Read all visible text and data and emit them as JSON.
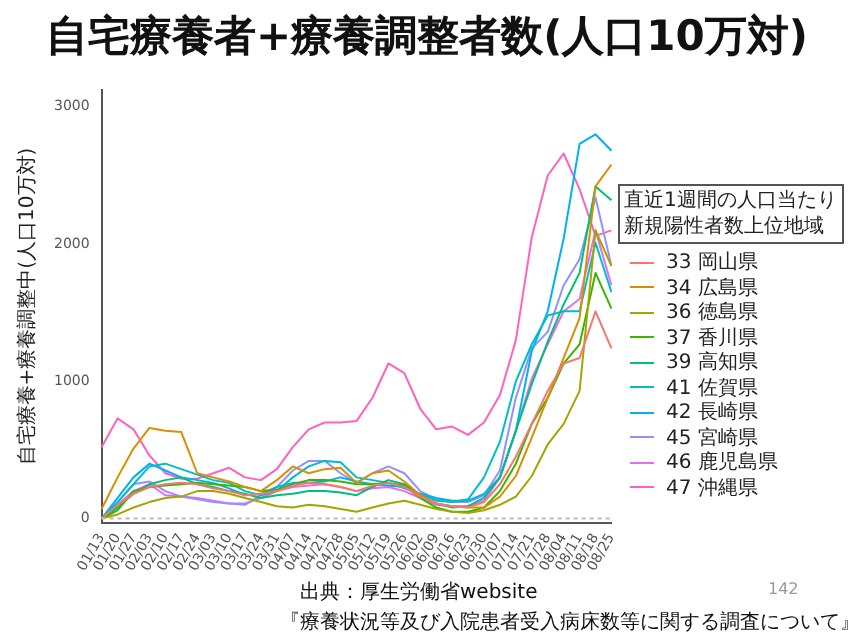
{
  "chart_data": {
    "type": "line",
    "title": "自宅療養者+療養調整者数(人口10万対)",
    "ylabel": "自宅療養+療養調整中(人口10万対)",
    "legend_title": "直近1週間の人口当たり新規陽性者数上位地域",
    "legend": "right",
    "marker": "none",
    "grid": false,
    "categories": [
      "01/13",
      "01/20",
      "01/27",
      "02/03",
      "02/10",
      "02/17",
      "02/24",
      "03/03",
      "03/10",
      "03/17",
      "03/24",
      "03/31",
      "04/07",
      "04/14",
      "04/21",
      "04/28",
      "05/05",
      "05/12",
      "05/19",
      "05/26",
      "06/02",
      "06/09",
      "06/16",
      "06/23",
      "06/30",
      "07/07",
      "07/14",
      "07/21",
      "07/28",
      "08/04",
      "08/11",
      "08/18",
      "08/25"
    ],
    "ylim": [
      -30,
      3120
    ],
    "yticks": [
      0,
      1000,
      2000,
      3000
    ],
    "ref_lines": [
      {
        "axis": "y",
        "value": 0,
        "color": "#bbbbbb",
        "line_style": "dotted"
      }
    ],
    "annotations": [
      "出典：厚生労働省website",
      "『療養状況等及び入院患者受入病床数等に関する調査について』",
      "142"
    ],
    "series": [
      {
        "name": "33 岡山県",
        "color": "#f8766d",
        "values": [
          0,
          100,
          180,
          230,
          250,
          260,
          250,
          220,
          200,
          170,
          180,
          200,
          240,
          260,
          250,
          230,
          200,
          240,
          260,
          230,
          160,
          110,
          90,
          80,
          120,
          250,
          450,
          690,
          930,
          1130,
          1170,
          1510,
          1240
        ]
      },
      {
        "name": "34 広島県",
        "color": "#d89000",
        "values": [
          70,
          300,
          510,
          660,
          640,
          630,
          330,
          300,
          270,
          230,
          200,
          280,
          380,
          330,
          360,
          370,
          260,
          330,
          350,
          270,
          170,
          110,
          90,
          80,
          80,
          160,
          310,
          590,
          880,
          1170,
          1460,
          2420,
          2580
        ]
      },
      {
        "name": "36 徳島県",
        "color": "#a3a500",
        "values": [
          0,
          30,
          80,
          120,
          150,
          160,
          200,
          200,
          180,
          150,
          120,
          90,
          80,
          100,
          90,
          70,
          50,
          80,
          110,
          130,
          100,
          70,
          50,
          40,
          60,
          100,
          160,
          310,
          540,
          690,
          930,
          2100,
          1840
        ]
      },
      {
        "name": "37 香川県",
        "color": "#39b600",
        "values": [
          0,
          60,
          200,
          230,
          240,
          250,
          260,
          250,
          240,
          230,
          200,
          210,
          250,
          280,
          280,
          270,
          250,
          250,
          260,
          240,
          150,
          80,
          50,
          50,
          80,
          200,
          400,
          690,
          880,
          1130,
          1270,
          1790,
          1530
        ]
      },
      {
        "name": "39 高知県",
        "color": "#00bf7d",
        "values": [
          0,
          80,
          180,
          250,
          280,
          300,
          250,
          230,
          200,
          180,
          150,
          170,
          180,
          200,
          200,
          190,
          170,
          230,
          280,
          250,
          170,
          110,
          80,
          90,
          150,
          300,
          640,
          980,
          1290,
          1560,
          1790,
          2420,
          2320
        ]
      },
      {
        "name": "41 佐賀県",
        "color": "#00bfc4",
        "values": [
          0,
          120,
          250,
          380,
          400,
          360,
          320,
          280,
          260,
          200,
          170,
          200,
          300,
          380,
          420,
          410,
          300,
          280,
          260,
          220,
          180,
          130,
          120,
          140,
          300,
          560,
          1000,
          1270,
          1480,
          1510,
          1510,
          2010,
          1650
        ]
      },
      {
        "name": "42 長崎県",
        "color": "#00b0f6",
        "values": [
          0,
          150,
          300,
          400,
          350,
          300,
          280,
          260,
          220,
          170,
          180,
          230,
          260,
          260,
          270,
          300,
          270,
          250,
          240,
          230,
          180,
          150,
          130,
          130,
          180,
          300,
          640,
          1220,
          1510,
          2040,
          2730,
          2800,
          2680
        ]
      },
      {
        "name": "45 宮崎県",
        "color": "#9590ff",
        "values": [
          0,
          120,
          250,
          270,
          200,
          160,
          140,
          120,
          110,
          100,
          170,
          230,
          350,
          420,
          420,
          330,
          260,
          330,
          380,
          330,
          200,
          140,
          120,
          120,
          170,
          350,
          880,
          1240,
          1360,
          1700,
          1890,
          2340,
          1840
        ]
      },
      {
        "name": "46 鹿児島県",
        "color": "#e76bf3",
        "values": [
          0,
          100,
          200,
          250,
          170,
          160,
          150,
          130,
          110,
          110,
          150,
          200,
          230,
          240,
          250,
          230,
          200,
          220,
          230,
          200,
          150,
          100,
          90,
          90,
          130,
          300,
          640,
          1020,
          1270,
          1510,
          1600,
          2100,
          1700
        ]
      },
      {
        "name": "47 沖縄県",
        "color": "#ff62bc",
        "values": [
          520,
          730,
          650,
          460,
          330,
          290,
          290,
          330,
          370,
          300,
          280,
          360,
          520,
          650,
          700,
          700,
          710,
          880,
          1130,
          1060,
          800,
          650,
          670,
          610,
          700,
          900,
          1300,
          2050,
          2500,
          2660,
          2400,
          2060,
          2100
        ]
      }
    ]
  }
}
